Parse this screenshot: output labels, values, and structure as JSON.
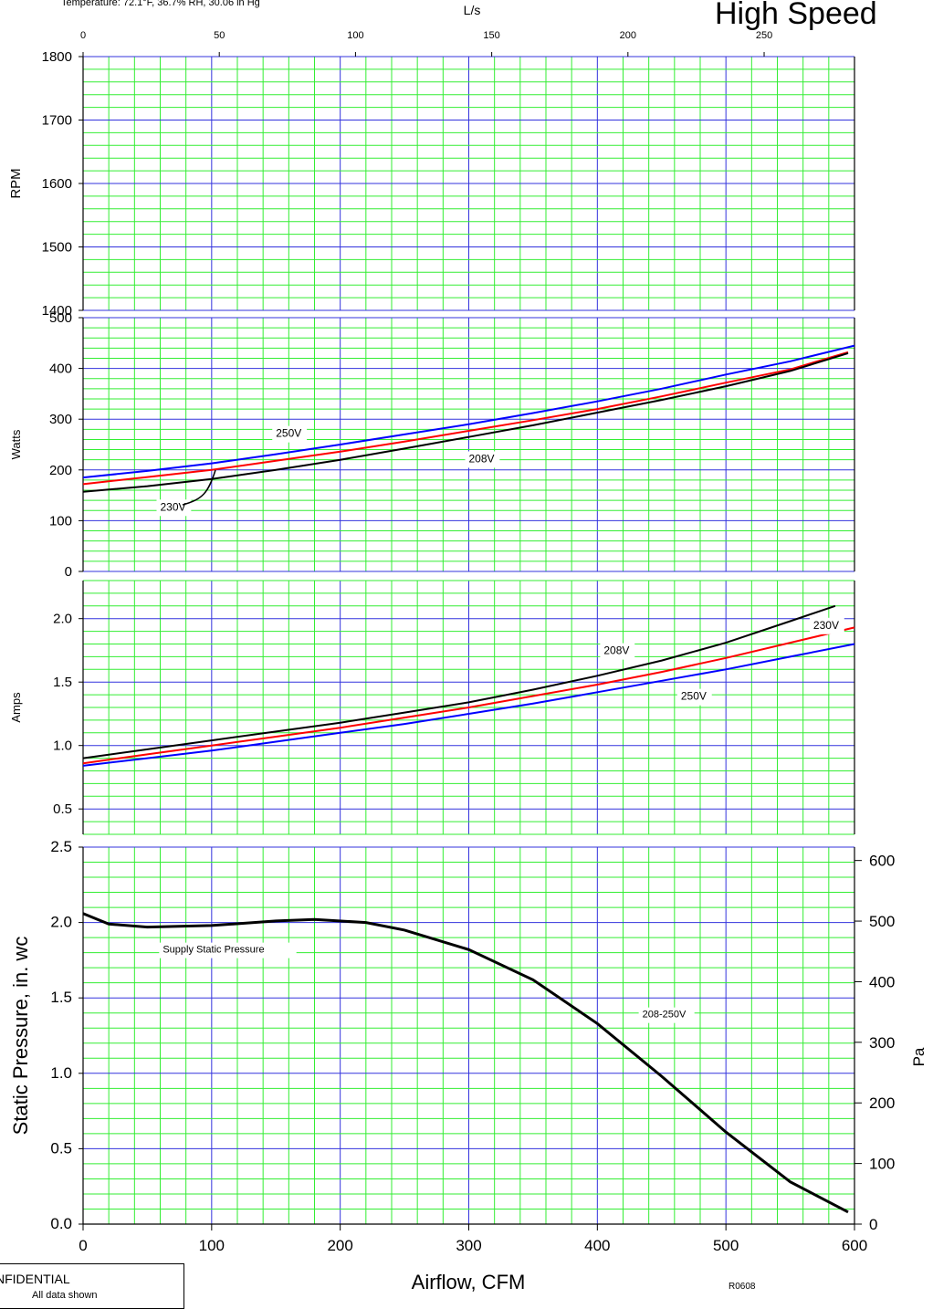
{
  "header": {
    "conditions": "Temperature: 72.1°F, 36.7% RH, 30.06 in Hg",
    "top_axis_label": "L/s",
    "title": "High Speed"
  },
  "footer": {
    "confidential": "NFIDENTIAL",
    "subline": "All data shown",
    "code": "R0608"
  },
  "chart_data": {
    "type": "line",
    "x_axis": {
      "label": "Airflow, CFM",
      "range": [
        0,
        600
      ],
      "ticks": [
        0,
        100,
        200,
        300,
        400,
        500,
        600
      ]
    },
    "top_axis": {
      "label": "L/s",
      "ticks": [
        0,
        50,
        100,
        150,
        200,
        250
      ]
    },
    "grid": true,
    "panels": [
      {
        "id": "rpm",
        "ylabel": "RPM",
        "ylim": [
          1400,
          1800
        ],
        "yticks": [
          1400,
          1500,
          1600,
          1700,
          1800
        ],
        "series": []
      },
      {
        "id": "watts",
        "ylabel": "Watts",
        "ylim": [
          0,
          500
        ],
        "yticks": [
          0,
          100,
          200,
          300,
          400,
          500
        ],
        "series": [
          {
            "name": "250V",
            "color": "#0000ff",
            "x": [
              0,
              50,
              100,
              150,
              200,
              250,
              300,
              350,
              400,
              450,
              500,
              550,
              600
            ],
            "y": [
              185,
              198,
              213,
              231,
              250,
              270,
              290,
              312,
              335,
              360,
              388,
              414,
              445
            ]
          },
          {
            "name": "230V",
            "color": "#ff0000",
            "x": [
              0,
              50,
              100,
              150,
              200,
              250,
              300,
              350,
              400,
              450,
              500,
              550,
              595
            ],
            "y": [
              172,
              186,
              200,
              218,
              236,
              256,
              277,
              298,
              320,
              345,
              372,
              398,
              432
            ]
          },
          {
            "name": "208V",
            "color": "#000000",
            "x": [
              0,
              50,
              100,
              150,
              200,
              250,
              300,
              350,
              400,
              450,
              500,
              550,
              595
            ],
            "y": [
              157,
              168,
              182,
              200,
              220,
              242,
              265,
              288,
              313,
              338,
              365,
              395,
              430
            ]
          }
        ],
        "annotations": [
          {
            "text": "250V",
            "x": 150,
            "y": 265
          },
          {
            "text": "208V",
            "x": 300,
            "y": 215
          },
          {
            "text": "230V",
            "x": 60,
            "y": 120
          }
        ]
      },
      {
        "id": "amps",
        "ylabel": "Amps",
        "ylim": [
          0.3,
          2.3
        ],
        "yticks": [
          0.5,
          1.0,
          1.5,
          2.0
        ],
        "series": [
          {
            "name": "208V",
            "color": "#000000",
            "x": [
              0,
              50,
              100,
              150,
              200,
              250,
              300,
              350,
              400,
              450,
              500,
              550,
              585
            ],
            "y": [
              0.9,
              0.97,
              1.04,
              1.11,
              1.18,
              1.26,
              1.34,
              1.44,
              1.55,
              1.67,
              1.81,
              1.98,
              2.1
            ]
          },
          {
            "name": "230V",
            "color": "#ff0000",
            "x": [
              0,
              50,
              100,
              150,
              200,
              250,
              300,
              350,
              400,
              450,
              500,
              550,
              600
            ],
            "y": [
              0.86,
              0.93,
              1.0,
              1.07,
              1.14,
              1.22,
              1.3,
              1.39,
              1.48,
              1.58,
              1.69,
              1.81,
              1.93
            ]
          },
          {
            "name": "250V",
            "color": "#0000ff",
            "x": [
              0,
              50,
              100,
              150,
              200,
              250,
              300,
              350,
              400,
              450,
              500,
              550,
              600
            ],
            "y": [
              0.84,
              0.9,
              0.96,
              1.03,
              1.1,
              1.17,
              1.25,
              1.33,
              1.42,
              1.51,
              1.6,
              1.7,
              1.8
            ]
          }
        ],
        "annotations": [
          {
            "text": "208V",
            "x": 405,
            "y": 1.72
          },
          {
            "text": "230V",
            "x": 568,
            "y": 1.92
          },
          {
            "text": "250V",
            "x": 465,
            "y": 1.36
          }
        ]
      },
      {
        "id": "static",
        "ylabel": "Static Pressure, in. wc",
        "ylim": [
          0,
          2.5
        ],
        "yticks": [
          0,
          0.5,
          1.0,
          1.5,
          2.0,
          2.5
        ],
        "ylabel_right": "Pa",
        "yticks_right": [
          0,
          100,
          200,
          300,
          400,
          500,
          600
        ],
        "series": [
          {
            "name": "208-250V",
            "color": "#000000",
            "x": [
              0,
              20,
              50,
              100,
              150,
              180,
              220,
              250,
              300,
              350,
              400,
              450,
              500,
              550,
              595
            ],
            "y": [
              2.06,
              1.99,
              1.97,
              1.98,
              2.01,
              2.02,
              2.0,
              1.95,
              1.82,
              1.62,
              1.33,
              0.98,
              0.61,
              0.28,
              0.08
            ]
          }
        ],
        "annotations": [
          {
            "text": "Supply Static Pressure",
            "x": 62,
            "y": 1.8
          },
          {
            "text": "208-250V",
            "x": 435,
            "y": 1.37
          }
        ]
      }
    ]
  }
}
